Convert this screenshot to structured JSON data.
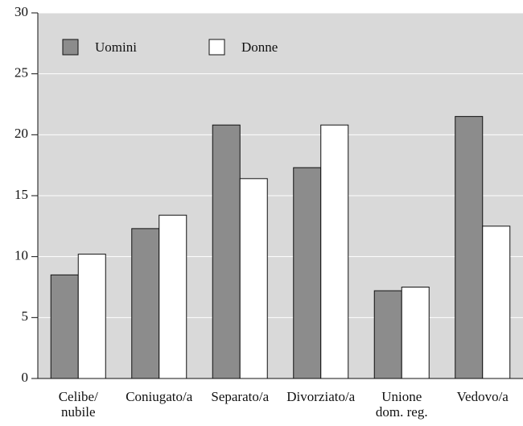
{
  "chart_data": {
    "type": "bar",
    "categories": [
      "Celibe/\nnubile",
      "Coniugato/a",
      "Separato/a",
      "Divorziato/a",
      "Unione\ndom. reg.",
      "Vedovo/a"
    ],
    "series": [
      {
        "name": "Uomini",
        "color": "#8c8c8c",
        "values": [
          8.5,
          12.3,
          20.8,
          17.3,
          7.2,
          21.5
        ]
      },
      {
        "name": "Donne",
        "color": "#ffffff",
        "values": [
          10.2,
          13.4,
          16.4,
          20.8,
          7.5,
          12.5
        ]
      }
    ],
    "ylim": [
      0,
      30
    ],
    "yticks": [
      0,
      5,
      10,
      15,
      20,
      25,
      30
    ],
    "grid": true,
    "legend": "top-left",
    "background": "#d9d9d9"
  }
}
